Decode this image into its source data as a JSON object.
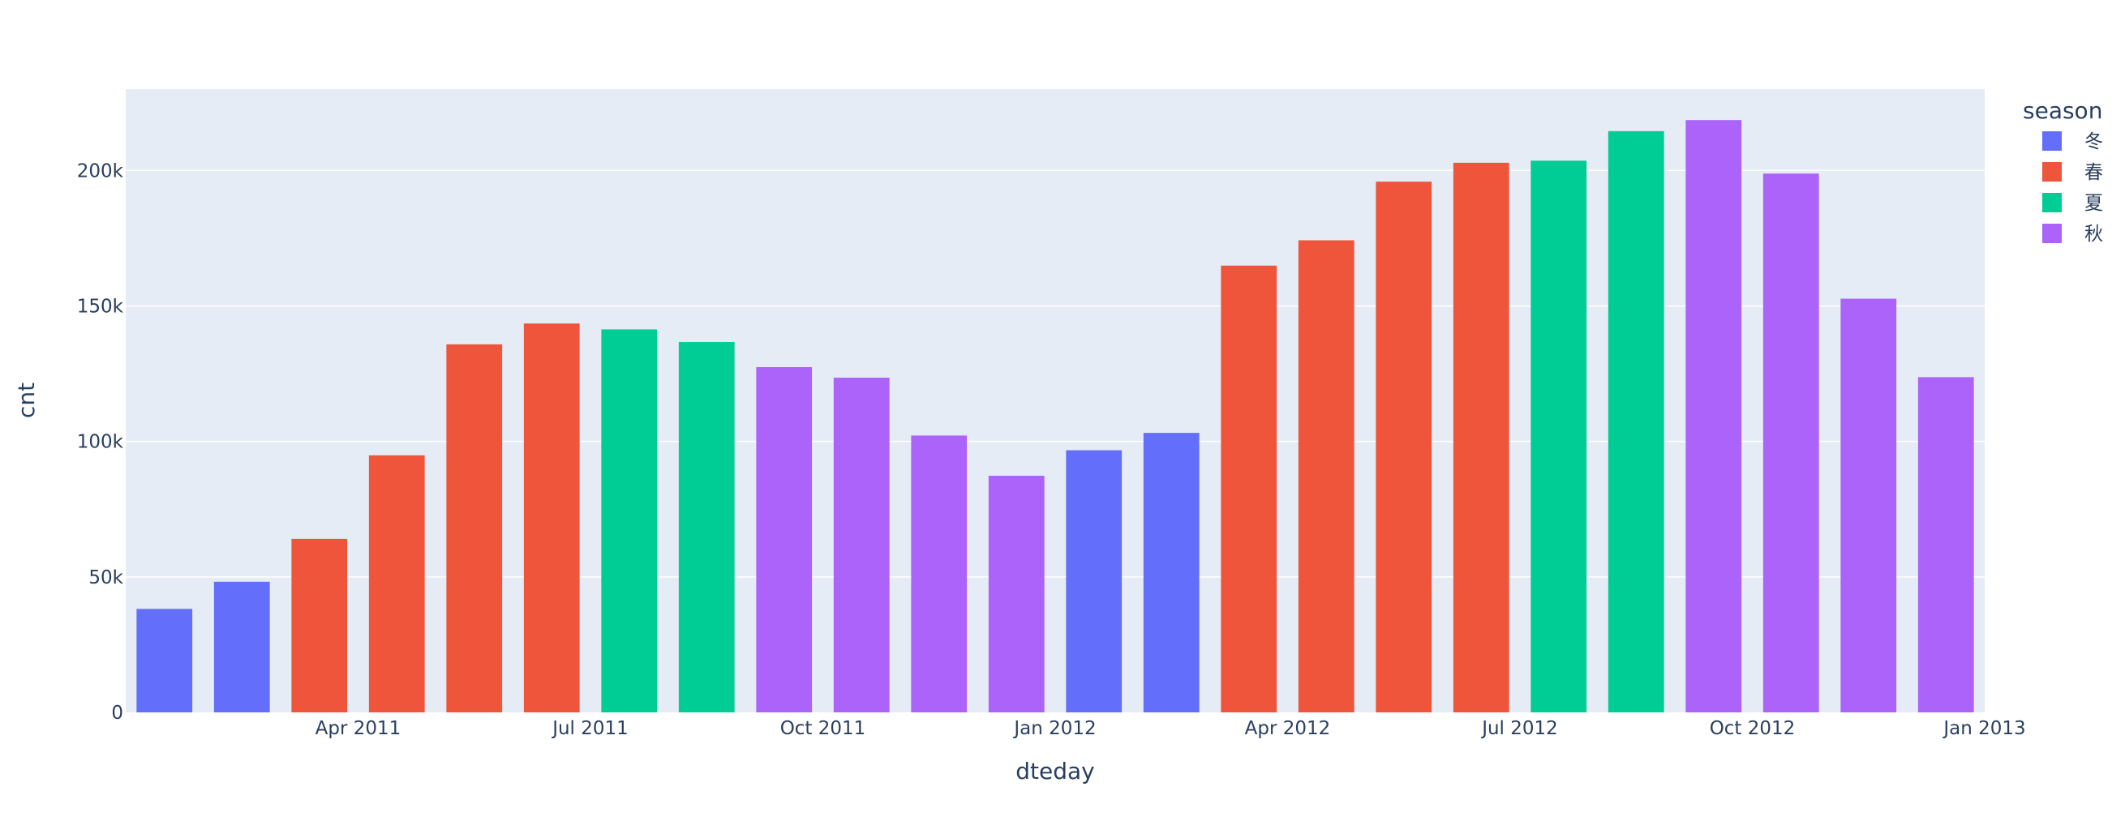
{
  "chart_data": {
    "type": "bar",
    "xlabel": "dteday",
    "ylabel": "cnt",
    "ylim": [
      0,
      230000
    ],
    "y_ticks": [
      {
        "value": 0,
        "label": "0"
      },
      {
        "value": 50000,
        "label": "50k"
      },
      {
        "value": 100000,
        "label": "100k"
      },
      {
        "value": 150000,
        "label": "150k"
      },
      {
        "value": 200000,
        "label": "200k"
      }
    ],
    "x_ticks": [
      {
        "month_index": 2,
        "label": "Apr 2011"
      },
      {
        "month_index": 5,
        "label": "Jul 2011"
      },
      {
        "month_index": 8,
        "label": "Oct 2011"
      },
      {
        "month_index": 11,
        "label": "Jan 2012"
      },
      {
        "month_index": 14,
        "label": "Apr 2012"
      },
      {
        "month_index": 17,
        "label": "Jul 2012"
      },
      {
        "month_index": 20,
        "label": "Oct 2012"
      },
      {
        "month_index": 23,
        "label": "Jan 2013"
      }
    ],
    "legend": {
      "title": "season",
      "position": "top-right",
      "entries": [
        {
          "name": "冬",
          "color": "#636efa"
        },
        {
          "name": "春",
          "color": "#EF553B"
        },
        {
          "name": "夏",
          "color": "#00cc96"
        },
        {
          "name": "秋",
          "color": "#ab63fa"
        }
      ]
    },
    "categories": [
      "2011-01",
      "2011-02",
      "2011-03",
      "2011-04",
      "2011-05",
      "2011-06",
      "2011-07",
      "2011-08",
      "2011-09",
      "2011-10",
      "2011-11",
      "2011-12",
      "2012-01",
      "2012-02",
      "2012-03",
      "2012-04",
      "2012-05",
      "2012-06",
      "2012-07",
      "2012-08",
      "2012-09",
      "2012-10",
      "2012-11",
      "2012-12"
    ],
    "values": [
      38189,
      48215,
      64045,
      94870,
      135821,
      143512,
      141341,
      136691,
      127418,
      123511,
      102167,
      87323,
      96744,
      103137,
      164875,
      174224,
      195865,
      202830,
      203607,
      214503,
      218573,
      198841,
      152664,
      123713
    ],
    "seasons": [
      "冬",
      "冬",
      "春",
      "春",
      "春",
      "春",
      "夏",
      "夏",
      "秋",
      "秋",
      "秋",
      "秋",
      "冬",
      "冬",
      "春",
      "春",
      "春",
      "春",
      "夏",
      "夏",
      "秋",
      "秋",
      "秋",
      "秋"
    ]
  }
}
